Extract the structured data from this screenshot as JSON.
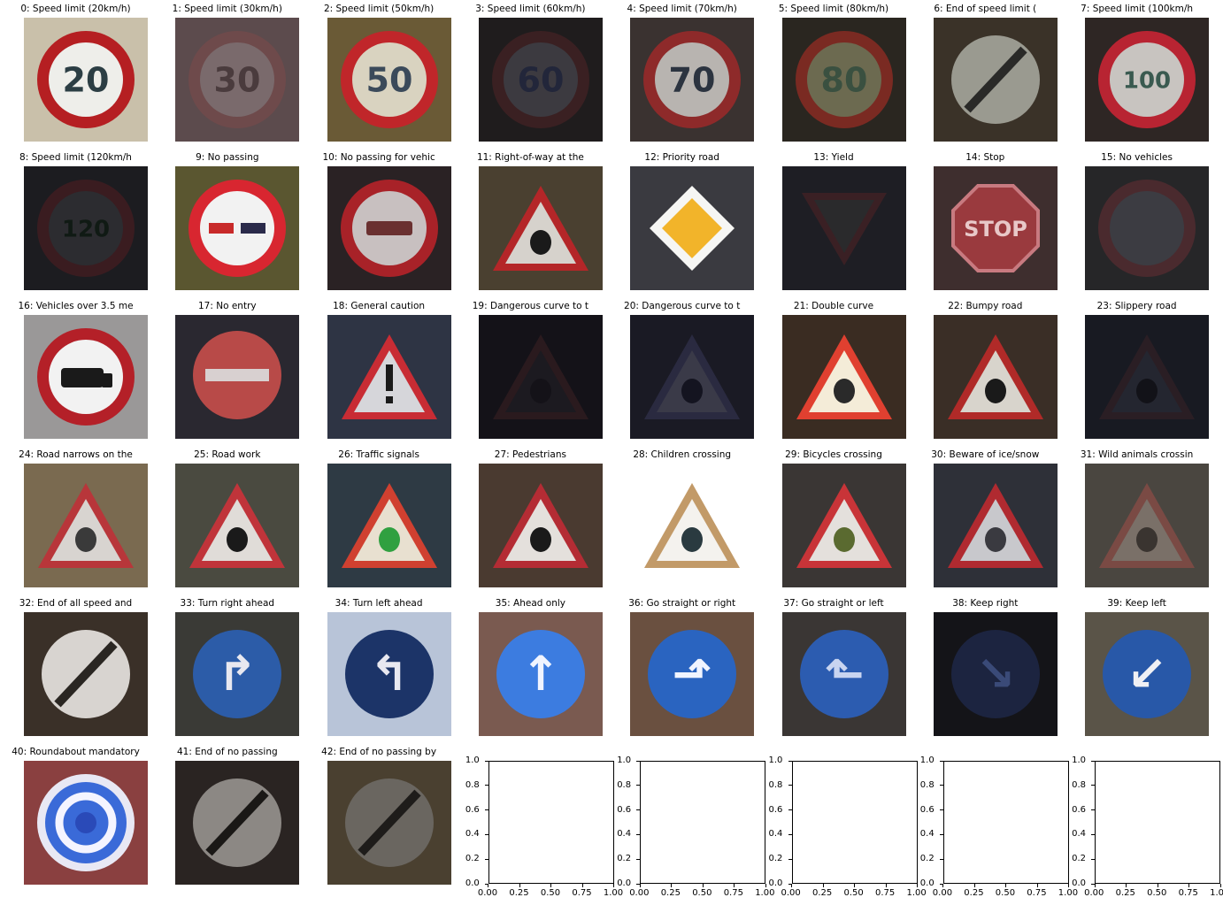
{
  "signs": [
    {
      "label": "0: Speed limit (20km/h)",
      "shape": "circle",
      "bg": "#c9c0aa",
      "face": "#eeeeea",
      "rim": "#b51f22",
      "ink": "#2c3e44",
      "symbol": "20",
      "icon": "speed-limit-20-sign-icon"
    },
    {
      "label": "1: Speed limit (30km/h)",
      "shape": "circle",
      "bg": "#5c4b4d",
      "face": "#7a6a6c",
      "rim": "#6e4a4b",
      "ink": "#4a3b3d",
      "symbol": "30",
      "icon": "speed-limit-30-sign-icon"
    },
    {
      "label": "2: Speed limit (50km/h)",
      "shape": "circle",
      "bg": "#6a5a36",
      "face": "#d9d3c0",
      "rim": "#c0262a",
      "ink": "#3b4a5a",
      "symbol": "50",
      "icon": "speed-limit-50-sign-icon"
    },
    {
      "label": "3: Speed limit (60km/h)",
      "shape": "circle",
      "bg": "#1f1c1d",
      "face": "#3c3a40",
      "rim": "#3a2022",
      "ink": "#22263a",
      "symbol": "60",
      "icon": "speed-limit-60-sign-icon"
    },
    {
      "label": "4: Speed limit (70km/h)",
      "shape": "circle",
      "bg": "#3a3230",
      "face": "#b8b4b0",
      "rim": "#8e2a2a",
      "ink": "#2c3440",
      "symbol": "70",
      "icon": "speed-limit-70-sign-icon"
    },
    {
      "label": "5: Speed limit (80km/h)",
      "shape": "circle",
      "bg": "#2a2620",
      "face": "#6c6a50",
      "rim": "#7a2a22",
      "ink": "#3a5040",
      "symbol": "80",
      "icon": "speed-limit-80-sign-icon"
    },
    {
      "label": "6: End of speed limit (",
      "shape": "end",
      "bg": "#3a3228",
      "face": "#9a9a90",
      "rim": "#9a9a90",
      "ink": "#2a2a28",
      "symbol": "",
      "icon": "end-speed-limit-sign-icon"
    },
    {
      "label": "7: Speed limit (100km/h",
      "shape": "circle",
      "bg": "#2e2624",
      "face": "#c8c4c0",
      "rim": "#b82432",
      "ink": "#3a5a50",
      "symbol": "100",
      "icon": "speed-limit-100-sign-icon"
    },
    {
      "label": "8: Speed limit (120km/h",
      "shape": "circle",
      "bg": "#1c1c20",
      "face": "#2c2c30",
      "rim": "#3a1c20",
      "ink": "#101a14",
      "symbol": "120",
      "icon": "speed-limit-120-sign-icon"
    },
    {
      "label": "9: No passing",
      "shape": "circle",
      "bg": "#5a5630",
      "face": "#f2f2f2",
      "rim": "#d82630",
      "ink": "#c82a2a",
      "symbol": "",
      "icon": "no-passing-sign-icon"
    },
    {
      "label": "10: No passing for vehic",
      "shape": "circle",
      "bg": "#2a2224",
      "face": "#c8c0c0",
      "rim": "#a82228",
      "ink": "#6a3030",
      "symbol": "",
      "icon": "no-passing-trucks-sign-icon"
    },
    {
      "label": "11: Right-of-way at the",
      "shape": "triangle",
      "bg": "#4a4030",
      "face": "#d6d2cc",
      "rim": "#b42628",
      "ink": "#1a1a1a",
      "symbol": "",
      "icon": "right-of-way-sign-icon"
    },
    {
      "label": "12: Priority road",
      "shape": "diamond",
      "bg": "#3a3a40",
      "face": "#f6f6f4",
      "rim": "#f6f6f4",
      "ink": "#f2b42a",
      "symbol": "",
      "icon": "priority-road-sign-icon"
    },
    {
      "label": "13: Yield",
      "shape": "yield",
      "bg": "#1e1e24",
      "face": "#2a2a2c",
      "rim": "#3a2024",
      "ink": "#222",
      "symbol": "",
      "icon": "yield-sign-icon"
    },
    {
      "label": "14: Stop",
      "shape": "octagon",
      "bg": "#3e2e2e",
      "face": "#9a3a3e",
      "rim": "#c87a80",
      "ink": "#e8c8c8",
      "symbol": "STOP",
      "icon": "stop-sign-icon"
    },
    {
      "label": "15: No vehicles",
      "shape": "circle",
      "bg": "#262628",
      "face": "#3c3c42",
      "rim": "#4a2a2e",
      "ink": "#3c3c42",
      "symbol": "",
      "icon": "no-vehicles-sign-icon"
    },
    {
      "label": "16: Vehicles over 3.5 me",
      "shape": "circle",
      "bg": "#9a9898",
      "face": "#f2f2f2",
      "rim": "#b42028",
      "ink": "#1a1a1a",
      "symbol": "",
      "icon": "no-heavy-vehicles-sign-icon"
    },
    {
      "label": "17: No entry",
      "shape": "noentry",
      "bg": "#2a2830",
      "face": "#b84a48",
      "rim": "#b84a48",
      "ink": "#d8d0d0",
      "symbol": "",
      "icon": "no-entry-sign-icon"
    },
    {
      "label": "18: General caution",
      "shape": "triangle",
      "bg": "#2e3444",
      "face": "#d6d6da",
      "rim": "#c82c34",
      "ink": "#1a1a1a",
      "symbol": "!",
      "icon": "general-caution-sign-icon"
    },
    {
      "label": "19: Dangerous curve to t",
      "shape": "triangle",
      "bg": "#141218",
      "face": "#1c1a20",
      "rim": "#2a1a1e",
      "ink": "#141218",
      "symbol": "",
      "icon": "dangerous-curve-left-sign-icon"
    },
    {
      "label": "20: Dangerous curve to t",
      "shape": "triangle",
      "bg": "#1a1a24",
      "face": "#3a3a48",
      "rim": "#2a2a40",
      "ink": "#141420",
      "symbol": "",
      "icon": "dangerous-curve-right-sign-icon"
    },
    {
      "label": "21: Double curve",
      "shape": "triangle",
      "bg": "#3a2c22",
      "face": "#f4ecd8",
      "rim": "#e04030",
      "ink": "#2a2a2a",
      "symbol": "",
      "icon": "double-curve-sign-icon"
    },
    {
      "label": "22: Bumpy road",
      "shape": "triangle",
      "bg": "#3a2e26",
      "face": "#d8d4cc",
      "rim": "#b02a28",
      "ink": "#1a1a1a",
      "symbol": "",
      "icon": "bumpy-road-sign-icon"
    },
    {
      "label": "23: Slippery road",
      "shape": "triangle",
      "bg": "#181a22",
      "face": "#242630",
      "rim": "#2a1e24",
      "ink": "#121218",
      "symbol": "",
      "icon": "slippery-road-sign-icon"
    },
    {
      "label": "24: Road narrows on the",
      "shape": "triangle",
      "bg": "#7a6a50",
      "face": "#d8d4d0",
      "rim": "#b8363a",
      "ink": "#3a3a3a",
      "symbol": "",
      "icon": "road-narrows-sign-icon"
    },
    {
      "label": "25: Road work",
      "shape": "triangle",
      "bg": "#4a4a40",
      "face": "#e0dcd8",
      "rim": "#c0343a",
      "ink": "#1a1a1a",
      "symbol": "",
      "icon": "road-work-sign-icon"
    },
    {
      "label": "26: Traffic signals",
      "shape": "triangle",
      "bg": "#2e3a44",
      "face": "#e8e0d0",
      "rim": "#d04030",
      "ink": "#30a040",
      "symbol": "",
      "icon": "traffic-signals-sign-icon"
    },
    {
      "label": "27: Pedestrians",
      "shape": "triangle",
      "bg": "#4a3a30",
      "face": "#e4e0dc",
      "rim": "#b42c34",
      "ink": "#1a1a1a",
      "symbol": "",
      "icon": "pedestrians-sign-icon"
    },
    {
      "label": "28: Children crossing",
      "shape": "triangle",
      "bg": "#ffffff",
      "face": "#f4f2ee",
      "rim": "#c29a68",
      "ink": "#2a3a40",
      "symbol": "",
      "icon": "children-crossing-sign-icon"
    },
    {
      "label": "29: Bicycles crossing",
      "shape": "triangle",
      "bg": "#3a3634",
      "face": "#e4e0dc",
      "rim": "#c83438",
      "ink": "#5a6a30",
      "symbol": "",
      "icon": "bicycles-crossing-sign-icon"
    },
    {
      "label": "30: Beware of ice/snow",
      "shape": "triangle",
      "bg": "#2e3038",
      "face": "#c8c8cc",
      "rim": "#b02a30",
      "ink": "#3a3a40",
      "symbol": "",
      "icon": "ice-snow-sign-icon"
    },
    {
      "label": "31: Wild animals crossin",
      "shape": "triangle",
      "bg": "#4a4640",
      "face": "#7a7068",
      "rim": "#7a4a44",
      "ink": "#3a3430",
      "symbol": "",
      "icon": "wild-animals-sign-icon"
    },
    {
      "label": "32: End of all speed and",
      "shape": "end",
      "bg": "#3a3028",
      "face": "#d8d4d0",
      "rim": "#d8d4d0",
      "ink": "#2a2622",
      "symbol": "",
      "icon": "end-all-limits-sign-icon"
    },
    {
      "label": "33: Turn right ahead",
      "shape": "blue",
      "bg": "#3a3a36",
      "face": "#2c5ca8",
      "rim": "#2c5ca8",
      "ink": "#e8e8f0",
      "symbol": "↱",
      "icon": "turn-right-sign-icon"
    },
    {
      "label": "34: Turn left ahead",
      "shape": "blue",
      "bg": "#b8c4d8",
      "face": "#1c3468",
      "rim": "#1c3468",
      "ink": "#e8e8f0",
      "symbol": "↰",
      "icon": "turn-left-sign-icon"
    },
    {
      "label": "35: Ahead only",
      "shape": "blue",
      "bg": "#7a5a50",
      "face": "#3c7ce0",
      "rim": "#3c7ce0",
      "ink": "#f0f4ff",
      "symbol": "↑",
      "icon": "ahead-only-sign-icon"
    },
    {
      "label": "36: Go straight or right",
      "shape": "blue",
      "bg": "#6a5040",
      "face": "#2a64c0",
      "rim": "#2a64c0",
      "ink": "#f0f4ff",
      "symbol": "⬏",
      "icon": "straight-or-right-sign-icon"
    },
    {
      "label": "37: Go straight or left",
      "shape": "blue",
      "bg": "#3a3634",
      "face": "#2c5cb0",
      "rim": "#2c5cb0",
      "ink": "#c8d4f0",
      "symbol": "⬑",
      "icon": "straight-or-left-sign-icon"
    },
    {
      "label": "38: Keep right",
      "shape": "blue",
      "bg": "#141418",
      "face": "#1c2440",
      "rim": "#1c2440",
      "ink": "#3a4a78",
      "symbol": "↘",
      "icon": "keep-right-sign-icon"
    },
    {
      "label": "39: Keep left",
      "shape": "blue",
      "bg": "#5a5448",
      "face": "#2858a8",
      "rim": "#2858a8",
      "ink": "#f0f0f4",
      "symbol": "↙",
      "icon": "keep-left-sign-icon"
    },
    {
      "label": "40: Roundabout mandatory",
      "shape": "roundabout",
      "bg": "#8a4040",
      "face": "#3a6ad8",
      "rim": "#e8e8f4",
      "ink": "#f4f4ff",
      "symbol": "",
      "icon": "roundabout-sign-icon"
    },
    {
      "label": "41: End of no passing",
      "shape": "end",
      "bg": "#2a2422",
      "face": "#8c8884",
      "rim": "#8c8884",
      "ink": "#1a1816",
      "symbol": "",
      "icon": "end-no-passing-sign-icon"
    },
    {
      "label": "42: End of no passing by",
      "shape": "end",
      "bg": "#4a4030",
      "face": "#6a6660",
      "rim": "#6a6660",
      "ink": "#1e1c1a",
      "symbol": "",
      "icon": "end-no-passing-trucks-sign-icon"
    }
  ],
  "empty_axes": {
    "count": 5,
    "y_ticks": [
      "0.0",
      "0.2",
      "0.4",
      "0.6",
      "0.8",
      "1.0"
    ],
    "x_ticks": [
      "0.00",
      "0.25",
      "0.50",
      "0.75",
      "1.00"
    ]
  }
}
